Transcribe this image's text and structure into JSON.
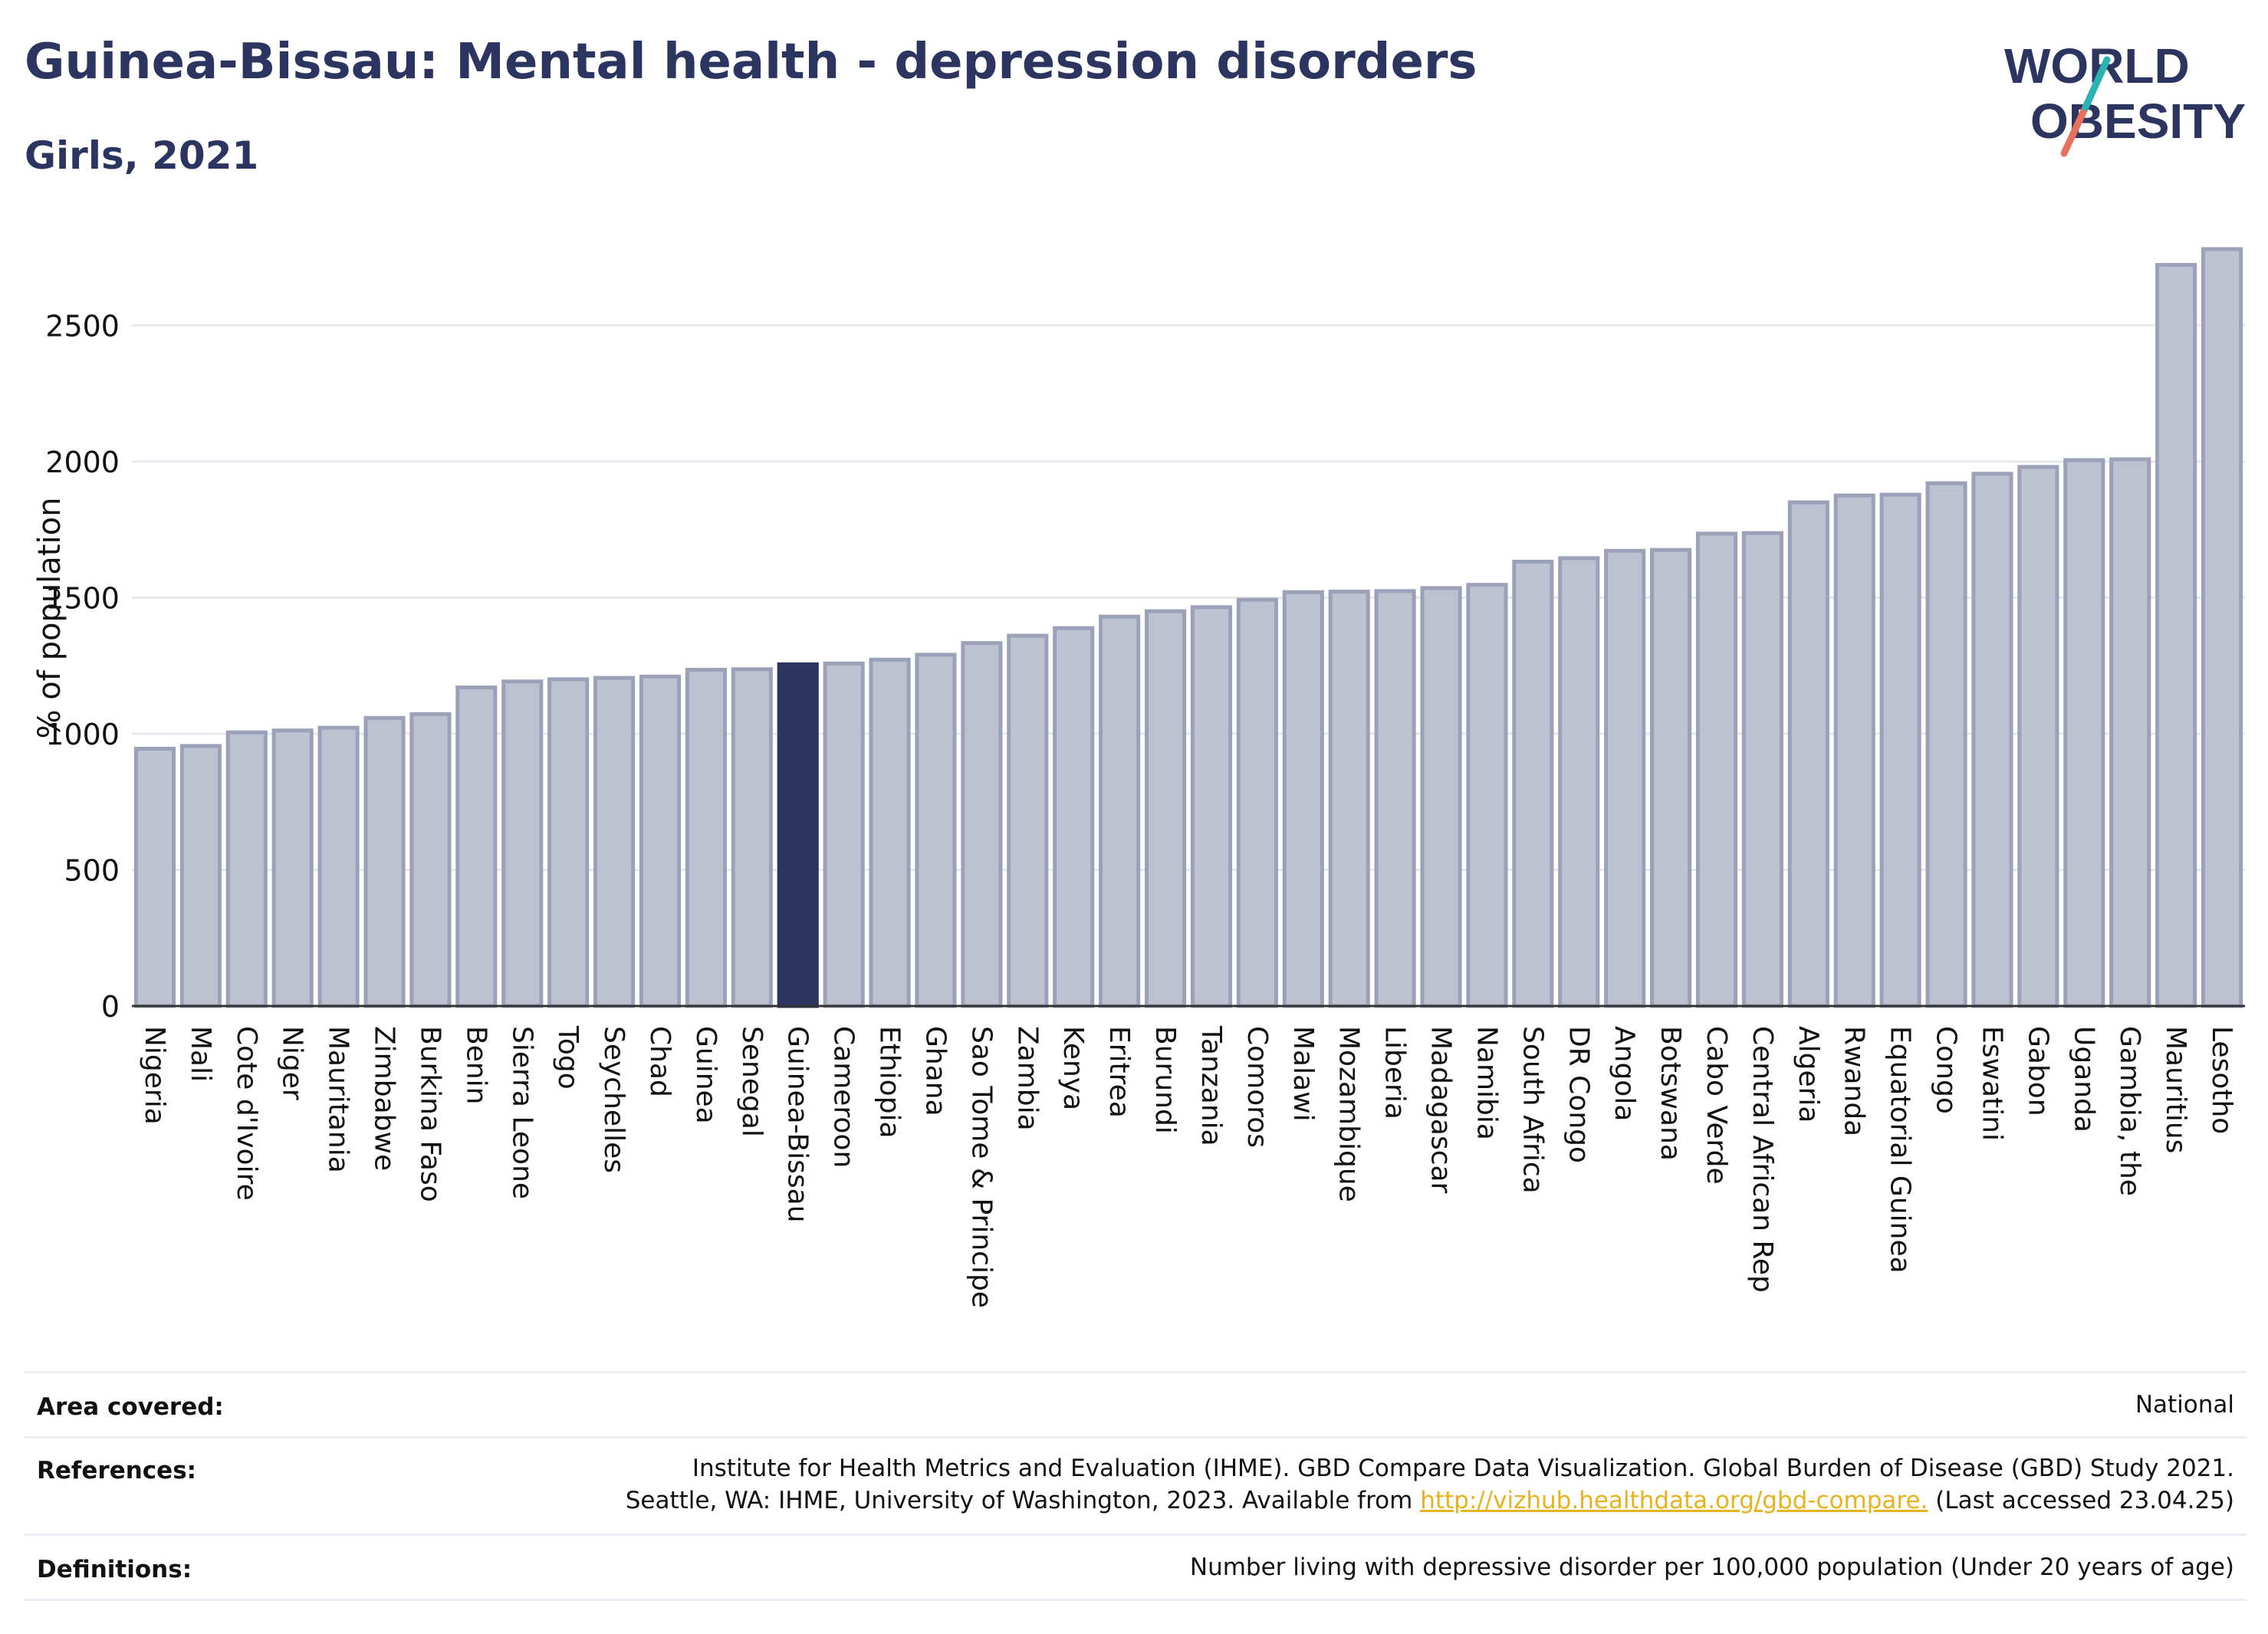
{
  "header": {
    "title": "Guinea-Bissau: Mental health - depression disorders",
    "subtitle": "Girls, 2021"
  },
  "logo": {
    "line1": "WORLD",
    "line2": "OBESITY",
    "accent_colors": [
      "#2bb3b3",
      "#e8705f"
    ]
  },
  "chart_data": {
    "type": "bar",
    "ylabel": "% of population",
    "xlabel": "",
    "ylim": [
      0,
      2850
    ],
    "yticks": [
      0,
      500,
      1000,
      1500,
      2000,
      2500
    ],
    "grid": true,
    "highlight": "Guinea-Bissau",
    "colors": {
      "bar": "#bec2d0",
      "bar_edge": "#9ba1b8",
      "highlight": "#2b3560"
    },
    "categories": [
      "Nigeria",
      "Mali",
      "Cote d'Ivoire",
      "Niger",
      "Mauritania",
      "Zimbabwe",
      "Burkina Faso",
      "Benin",
      "Sierra Leone",
      "Togo",
      "Seychelles",
      "Chad",
      "Guinea",
      "Senegal",
      "Guinea-Bissau",
      "Cameroon",
      "Ethiopia",
      "Ghana",
      "Sao Tome & Principe",
      "Zambia",
      "Kenya",
      "Eritrea",
      "Burundi",
      "Tanzania",
      "Comoros",
      "Malawi",
      "Mozambique",
      "Liberia",
      "Madagascar",
      "Namibia",
      "South Africa",
      "DR Congo",
      "Angola",
      "Botswana",
      "Cabo Verde",
      "Central African Rep",
      "Algeria",
      "Rwanda",
      "Equatorial Guinea",
      "Congo",
      "Eswatini",
      "Gabon",
      "Uganda",
      "Gambia, the",
      "Mauritius",
      "Lesotho"
    ],
    "values": [
      945,
      955,
      1005,
      1012,
      1022,
      1058,
      1072,
      1170,
      1192,
      1200,
      1205,
      1210,
      1235,
      1237,
      1255,
      1258,
      1272,
      1290,
      1333,
      1360,
      1388,
      1430,
      1450,
      1465,
      1492,
      1520,
      1522,
      1524,
      1535,
      1547,
      1632,
      1645,
      1672,
      1675,
      1735,
      1737,
      1850,
      1875,
      1878,
      1920,
      1955,
      1980,
      2005,
      2008,
      2722,
      2780
    ]
  },
  "footer": {
    "area_label": "Area covered:",
    "area_value": "National",
    "references_label": "References:",
    "references_line1": "Institute for Health Metrics and Evaluation (IHME). GBD Compare Data Visualization. Global Burden of Disease (GBD) Study 2021.",
    "references_line2_pre": "Seattle, WA: IHME, University of Washington, 2023. Available from ",
    "references_link": "http://vizhub.healthdata.org/gbd-compare.",
    "references_line2_post": " (Last accessed 23.04.25)",
    "definitions_label": "Definitions:",
    "definitions_value": "Number living with depressive disorder per 100,000 population (Under 20 years of age)"
  }
}
